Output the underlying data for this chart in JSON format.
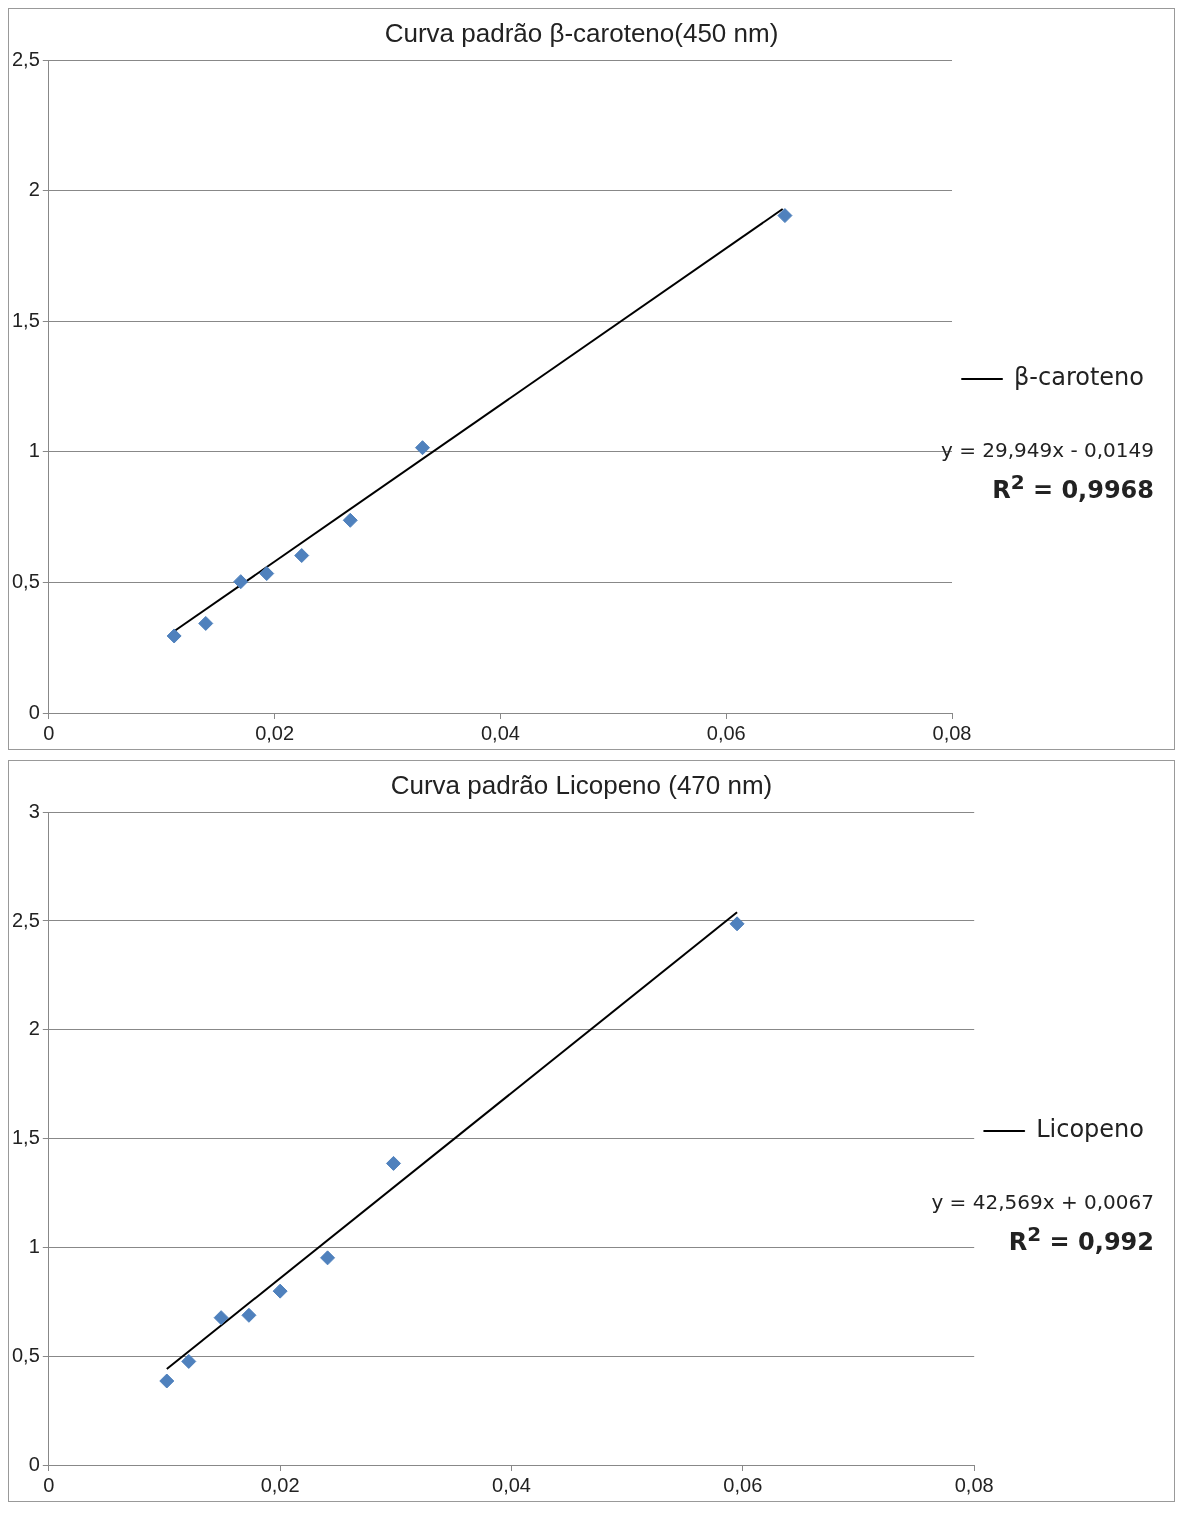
{
  "chart_data": [
    {
      "type": "scatter",
      "title": "Curva padrão β-caroteno(450 nm)",
      "xlim": [
        0,
        0.08
      ],
      "xticks": [
        0,
        {
          "value": 0.02,
          "label": "0,02"
        },
        {
          "value": 0.04,
          "label": "0,04"
        },
        {
          "value": 0.06,
          "label": "0,06"
        },
        {
          "value": 0.08,
          "label": "0,08"
        }
      ],
      "ylim": [
        0,
        2.5
      ],
      "yticks": [
        0,
        {
          "value": 0.5,
          "label": "0,5"
        },
        1,
        {
          "value": 1.5,
          "label": "1,5"
        },
        2,
        {
          "value": 2.5,
          "label": "2,5"
        }
      ],
      "grid": "y",
      "legend": "right",
      "annotations": [
        "y = 29,949x - 0,0149",
        "R$^{2}$ = 0,9968"
      ],
      "series": [
        {
          "type": "scatter",
          "marker": "diamond",
          "color": "#4f81bd",
          "x": [
            0.0111,
            0.0139,
            0.017,
            0.0193,
            0.0224,
            0.0267,
            0.0331,
            0.0652
          ],
          "values": [
            0.295,
            0.343,
            0.503,
            0.534,
            0.603,
            0.738,
            1.016,
            1.905
          ]
        },
        {
          "type": "line",
          "marker": "none",
          "name": "β-caroteno",
          "color": "#000000",
          "x": [
            0.011,
            0.065
          ],
          "values": [
            0.31,
            1.93
          ]
        }
      ]
    },
    {
      "type": "scatter",
      "title": "Curva padrão Licopeno (470 nm)",
      "xlim": [
        0,
        0.08
      ],
      "xticks": [
        0,
        {
          "value": 0.02,
          "label": "0,02"
        },
        {
          "value": 0.04,
          "label": "0,04"
        },
        {
          "value": 0.06,
          "label": "0,06"
        },
        {
          "value": 0.08,
          "label": "0,08"
        }
      ],
      "ylim": [
        0,
        3
      ],
      "yticks": [
        0,
        {
          "value": 0.5,
          "label": "0,5"
        },
        1,
        {
          "value": 1.5,
          "label": "1,5"
        },
        2,
        {
          "value": 2.5,
          "label": "2,5"
        },
        3
      ],
      "grid": "y",
      "legend": "right",
      "annotations": [
        "y = 42,569x + 0,0067",
        "R$^{2}$ = 0,992"
      ],
      "series": [
        {
          "type": "scatter",
          "marker": "diamond",
          "color": "#4f81bd",
          "x": [
            0.0102,
            0.0121,
            0.0149,
            0.0173,
            0.02,
            0.0241,
            0.0298,
            0.0595
          ],
          "values": [
            0.386,
            0.476,
            0.677,
            0.688,
            0.799,
            0.952,
            1.386,
            2.487
          ]
        },
        {
          "type": "line",
          "marker": "none",
          "name": "Licopeno",
          "color": "#000000",
          "x": [
            0.0102,
            0.0595
          ],
          "values": [
            0.441,
            2.54
          ]
        }
      ]
    }
  ]
}
